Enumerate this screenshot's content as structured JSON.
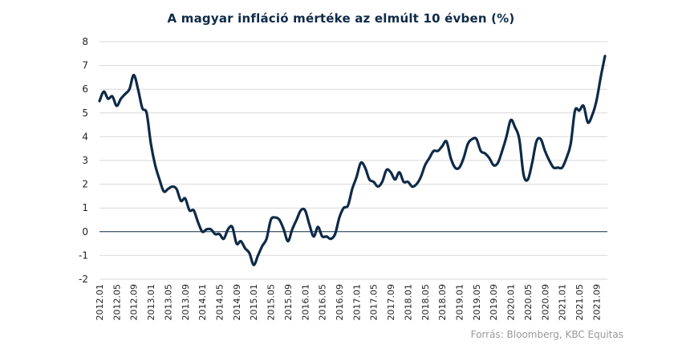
{
  "chart_data": {
    "type": "line",
    "title": "A magyar infláció mértéke az elmúlt 10 évben (%)",
    "source": "Forrás: Bloomberg, KBC Equitas",
    "xlabel": "",
    "ylabel": "",
    "ylim": [
      -2,
      8
    ],
    "yticks": [
      "8",
      "7",
      "6",
      "5",
      "4",
      "3",
      "2",
      "1",
      "0",
      "-1",
      "-2"
    ],
    "grid": true,
    "legend": "none",
    "line_color": "#0e2a47",
    "x_tick_labels": [
      "2012.01",
      "2012.05",
      "2012.09",
      "2013.01",
      "2013.05",
      "2013.09",
      "2014.01",
      "2014.05",
      "2014.09",
      "2015.01",
      "2015.05",
      "2015.09",
      "2016.01",
      "2016.05",
      "2016.09",
      "2017.01",
      "2017.05",
      "2017.09",
      "2018.01",
      "2018.05",
      "2018.09",
      "2019.01",
      "2019.05",
      "2019.09",
      "2020.01",
      "2020.05",
      "2020.09",
      "2021.01",
      "2021.05",
      "2021.09"
    ],
    "x": [
      "2012.01",
      "2012.02",
      "2012.03",
      "2012.04",
      "2012.05",
      "2012.06",
      "2012.07",
      "2012.08",
      "2012.09",
      "2012.10",
      "2012.11",
      "2012.12",
      "2013.01",
      "2013.02",
      "2013.03",
      "2013.04",
      "2013.05",
      "2013.06",
      "2013.07",
      "2013.08",
      "2013.09",
      "2013.10",
      "2013.11",
      "2013.12",
      "2014.01",
      "2014.02",
      "2014.03",
      "2014.04",
      "2014.05",
      "2014.06",
      "2014.07",
      "2014.08",
      "2014.09",
      "2014.10",
      "2014.11",
      "2014.12",
      "2015.01",
      "2015.02",
      "2015.03",
      "2015.04",
      "2015.05",
      "2015.06",
      "2015.07",
      "2015.08",
      "2015.09",
      "2015.10",
      "2015.11",
      "2015.12",
      "2016.01",
      "2016.02",
      "2016.03",
      "2016.04",
      "2016.05",
      "2016.06",
      "2016.07",
      "2016.08",
      "2016.09",
      "2016.10",
      "2016.11",
      "2016.12",
      "2017.01",
      "2017.02",
      "2017.03",
      "2017.04",
      "2017.05",
      "2017.06",
      "2017.07",
      "2017.08",
      "2017.09",
      "2017.10",
      "2017.11",
      "2017.12",
      "2018.01",
      "2018.02",
      "2018.03",
      "2018.04",
      "2018.05",
      "2018.06",
      "2018.07",
      "2018.08",
      "2018.09",
      "2018.10",
      "2018.11",
      "2018.12",
      "2019.01",
      "2019.02",
      "2019.03",
      "2019.04",
      "2019.05",
      "2019.06",
      "2019.07",
      "2019.08",
      "2019.09",
      "2019.10",
      "2019.11",
      "2019.12",
      "2020.01",
      "2020.02",
      "2020.03",
      "2020.04",
      "2020.05",
      "2020.06",
      "2020.07",
      "2020.08",
      "2020.09",
      "2020.10",
      "2020.11",
      "2020.12",
      "2021.01",
      "2021.02",
      "2021.03",
      "2021.04",
      "2021.05",
      "2021.06",
      "2021.07",
      "2021.08",
      "2021.09",
      "2021.10",
      "2021.11"
    ],
    "values": [
      5.5,
      5.9,
      5.6,
      5.7,
      5.3,
      5.6,
      5.8,
      6.0,
      6.6,
      6.0,
      5.2,
      5.0,
      3.7,
      2.8,
      2.2,
      1.7,
      1.8,
      1.9,
      1.8,
      1.3,
      1.4,
      0.9,
      0.9,
      0.4,
      0.0,
      0.1,
      0.1,
      -0.1,
      -0.1,
      -0.3,
      0.1,
      0.2,
      -0.5,
      -0.4,
      -0.7,
      -0.9,
      -1.4,
      -1.0,
      -0.6,
      -0.3,
      0.5,
      0.6,
      0.5,
      0.1,
      -0.4,
      0.1,
      0.5,
      0.9,
      0.9,
      0.3,
      -0.2,
      0.2,
      -0.2,
      -0.2,
      -0.3,
      -0.1,
      0.6,
      1.0,
      1.1,
      1.8,
      2.3,
      2.9,
      2.7,
      2.2,
      2.1,
      1.9,
      2.1,
      2.6,
      2.5,
      2.2,
      2.5,
      2.1,
      2.1,
      1.9,
      2.0,
      2.3,
      2.8,
      3.1,
      3.4,
      3.4,
      3.6,
      3.8,
      3.1,
      2.7,
      2.7,
      3.1,
      3.7,
      3.9,
      3.9,
      3.4,
      3.3,
      3.1,
      2.8,
      2.9,
      3.4,
      4.0,
      4.7,
      4.4,
      3.9,
      2.4,
      2.2,
      2.9,
      3.8,
      3.9,
      3.4,
      3.0,
      2.7,
      2.7,
      2.7,
      3.1,
      3.7,
      5.1,
      5.1,
      5.3,
      4.6,
      4.9,
      5.5,
      6.5,
      7.4
    ]
  }
}
